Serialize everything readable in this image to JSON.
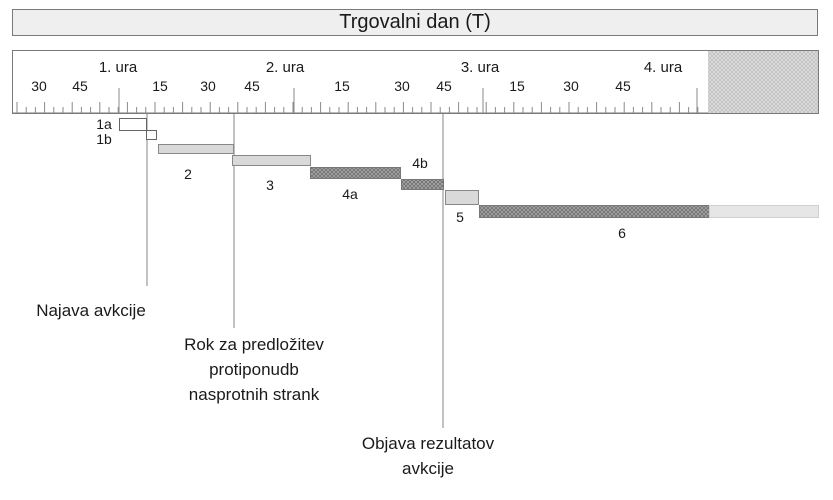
{
  "title": "Trgovalni dan (T)",
  "hour_labels": [
    "1. ura",
    "2. ura",
    "3. ura",
    "4. ura"
  ],
  "minute_labels": [
    "30",
    "45",
    "15",
    "30",
    "45",
    "15",
    "30",
    "45",
    "15",
    "30",
    "45"
  ],
  "tasks": [
    {
      "id": "1a",
      "label": "1a",
      "style": "outline"
    },
    {
      "id": "1b",
      "label": "1b",
      "style": "outline"
    },
    {
      "id": "2",
      "label": "2",
      "style": "light"
    },
    {
      "id": "3",
      "label": "3",
      "style": "light"
    },
    {
      "id": "4a",
      "label": "4a",
      "style": "hatched"
    },
    {
      "id": "4b",
      "label": "4b",
      "style": "hatched"
    },
    {
      "id": "5",
      "label": "5",
      "style": "light"
    },
    {
      "id": "6",
      "label": "6",
      "style": "hatched-extended"
    }
  ],
  "milestones": [
    {
      "id": "najava",
      "lines": [
        "Najava avkcije"
      ]
    },
    {
      "id": "rok",
      "lines": [
        "Rok za predložitev",
        "protiponudb",
        "nasprotnih strank"
      ]
    },
    {
      "id": "objava",
      "lines": [
        "Objava rezultatov",
        "avkcije"
      ]
    }
  ],
  "colors": {
    "bar_light": "#d9d9d9",
    "bar_hatched": "#8c8c8c",
    "bar_extension": "#e6e6e6",
    "line": "#9a9a9a",
    "border": "#7a7a7a"
  }
}
